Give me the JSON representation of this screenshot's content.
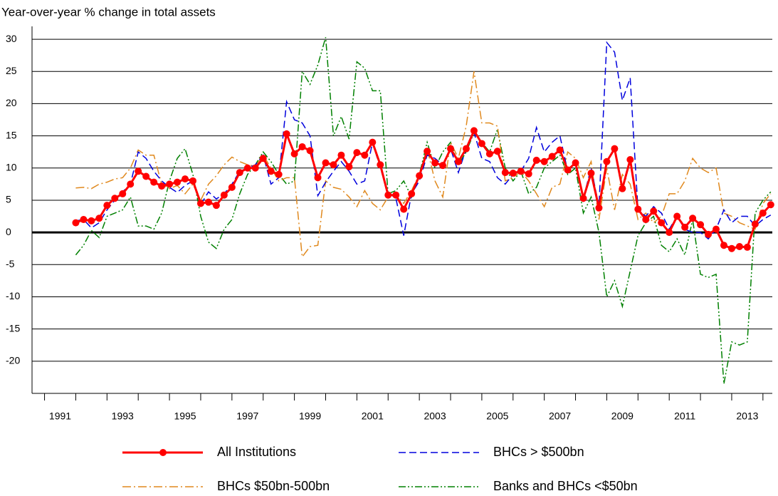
{
  "chart_data": {
    "type": "line",
    "title": "Year-over-year % change in total assets",
    "x": [
      1992.0,
      1992.25,
      1992.5,
      1992.75,
      1993.0,
      1993.25,
      1993.5,
      1993.75,
      1994.0,
      1994.25,
      1994.5,
      1994.75,
      1995.0,
      1995.25,
      1995.5,
      1995.75,
      1996.0,
      1996.25,
      1996.5,
      1996.75,
      1997.0,
      1997.25,
      1997.5,
      1997.75,
      1998.0,
      1998.25,
      1998.5,
      1998.75,
      1999.0,
      1999.25,
      1999.5,
      1999.75,
      2000.0,
      2000.25,
      2000.5,
      2000.75,
      2001.0,
      2001.25,
      2001.5,
      2001.75,
      2002.0,
      2002.25,
      2002.5,
      2002.75,
      2003.0,
      2003.25,
      2003.5,
      2003.75,
      2004.0,
      2004.25,
      2004.5,
      2004.75,
      2005.0,
      2005.25,
      2005.5,
      2005.75,
      2006.0,
      2006.25,
      2006.5,
      2006.75,
      2007.0,
      2007.25,
      2007.5,
      2007.75,
      2008.0,
      2008.25,
      2008.5,
      2008.75,
      2009.0,
      2009.25,
      2009.5,
      2009.75,
      2010.0,
      2010.25,
      2010.5,
      2010.75,
      2011.0,
      2011.25,
      2011.5,
      2011.75,
      2012.0,
      2012.25,
      2012.5,
      2012.75,
      2013.0,
      2013.25,
      2013.5,
      2013.75,
      2014.0,
      2014.25
    ],
    "series": [
      {
        "name": "All Institutions",
        "color": "#ff0000",
        "style": "solid",
        "marker": "circle",
        "values": [
          1.5,
          2.0,
          1.8,
          2.2,
          4.2,
          5.3,
          6.0,
          7.5,
          9.5,
          8.7,
          7.8,
          7.2,
          7.5,
          7.8,
          8.3,
          8.0,
          4.5,
          4.7,
          4.2,
          5.8,
          7.0,
          9.3,
          10.0,
          10.0,
          11.5,
          9.5,
          9.0,
          15.3,
          12.2,
          13.3,
          12.7,
          8.5,
          10.8,
          10.5,
          12.0,
          10.2,
          12.4,
          12.0,
          14.0,
          10.5,
          5.8,
          5.8,
          3.6,
          6.0,
          8.8,
          12.6,
          10.8,
          10.4,
          13.0,
          11.0,
          13.0,
          15.8,
          13.8,
          12.2,
          12.6,
          9.3,
          9.2,
          9.5,
          9.1,
          11.2,
          11.0,
          11.8,
          12.8,
          9.7,
          10.8,
          5.3,
          9.2,
          3.8,
          11.0,
          13.0,
          6.8,
          11.3,
          3.6,
          2.0,
          3.3,
          1.5,
          0.0,
          2.5,
          0.8,
          2.2,
          1.2,
          -0.3,
          0.5,
          -2.0,
          -2.5,
          -2.2,
          -2.3,
          1.3,
          3.0,
          4.3
        ]
      },
      {
        "name": "BHCs > $500bn",
        "color": "#0000dd",
        "style": "dashed",
        "values": [
          1.8,
          2.0,
          0.7,
          1.5,
          3.5,
          5.0,
          6.3,
          7.5,
          12.5,
          11.5,
          9.5,
          8.0,
          7.0,
          6.2,
          7.3,
          8.0,
          4.3,
          6.3,
          5.2,
          6.0,
          7.5,
          9.5,
          10.0,
          10.5,
          12.0,
          7.5,
          8.5,
          20.3,
          17.5,
          17.0,
          15.0,
          5.7,
          7.8,
          9.5,
          11.0,
          9.5,
          7.5,
          8.0,
          14.0,
          10.0,
          6.2,
          5.3,
          -0.5,
          6.0,
          8.0,
          12.0,
          11.5,
          10.5,
          13.0,
          9.3,
          13.0,
          15.5,
          11.5,
          11.0,
          8.5,
          7.5,
          9.0,
          9.5,
          11.5,
          16.3,
          12.5,
          14.0,
          15.0,
          9.5,
          11.0,
          5.3,
          10.0,
          4.0,
          29.5,
          28.0,
          20.5,
          24.0,
          3.5,
          2.5,
          4.0,
          3.0,
          0.5,
          2.5,
          0.5,
          0.0,
          0.0,
          -1.0,
          0.5,
          3.5,
          1.5,
          2.5,
          2.5,
          1.0,
          2.0,
          2.7
        ]
      },
      {
        "name": "BHCs $50bn-500bn",
        "color": "#e0891e",
        "style": "dashdot",
        "values": [
          6.9,
          7.0,
          6.8,
          7.5,
          7.8,
          8.3,
          8.5,
          10.0,
          12.8,
          12.0,
          12.0,
          7.5,
          6.8,
          7.3,
          6.0,
          7.5,
          5.0,
          7.5,
          8.8,
          10.5,
          11.7,
          11.0,
          10.5,
          10.3,
          12.0,
          10.0,
          8.0,
          8.5,
          8.5,
          -3.8,
          -2.2,
          -2.0,
          8.0,
          7.0,
          6.7,
          5.5,
          4.0,
          6.5,
          4.5,
          3.5,
          5.5,
          6.0,
          4.5,
          6.5,
          9.0,
          13.0,
          8.0,
          5.5,
          14.0,
          11.5,
          16.5,
          25.0,
          17.0,
          17.0,
          16.5,
          8.0,
          8.5,
          9.5,
          8.0,
          6.0,
          4.0,
          7.0,
          7.5,
          12.5,
          11.5,
          8.5,
          11.0,
          2.0,
          10.0,
          3.5,
          9.0,
          7.5,
          2.0,
          3.0,
          1.5,
          2.5,
          6.0,
          6.0,
          8.0,
          11.5,
          10.0,
          9.3,
          10.0,
          3.0,
          2.5,
          1.5,
          1.0,
          0.5,
          4.5,
          6.0
        ]
      },
      {
        "name": "Banks and BHCs <$50bn",
        "color": "#008000",
        "style": "dashdotdot",
        "values": [
          -3.5,
          -2.0,
          0.3,
          -0.8,
          2.5,
          3.0,
          3.5,
          5.5,
          1.0,
          1.0,
          0.5,
          3.0,
          8.0,
          11.5,
          13.0,
          9.0,
          2.5,
          -1.5,
          -2.5,
          0.5,
          2.0,
          6.0,
          9.0,
          10.5,
          12.5,
          11.0,
          9.0,
          7.5,
          8.0,
          25.0,
          23.0,
          26.0,
          30.3,
          15.0,
          18.0,
          14.5,
          26.5,
          25.5,
          22.0,
          22.0,
          6.0,
          6.5,
          8.0,
          5.5,
          9.0,
          14.0,
          10.0,
          12.5,
          14.0,
          10.5,
          12.5,
          15.5,
          14.0,
          12.5,
          16.0,
          10.0,
          8.0,
          9.5,
          6.0,
          7.0,
          10.0,
          11.0,
          12.0,
          9.0,
          10.0,
          3.0,
          5.5,
          0.0,
          -10.0,
          -7.5,
          -11.5,
          -6.0,
          -0.5,
          1.5,
          2.5,
          -2.0,
          -3.0,
          -1.0,
          -3.5,
          2.0,
          -6.5,
          -7.0,
          -6.5,
          -23.5,
          -17.0,
          -17.5,
          -17.0,
          3.0,
          5.0,
          6.3
        ]
      }
    ],
    "xlim": [
      1990.6,
      2014.3
    ],
    "xticks": [
      {
        "value": 1991.5,
        "label": "1991"
      },
      {
        "value": 1993.5,
        "label": "1993"
      },
      {
        "value": 1995.5,
        "label": "1995"
      },
      {
        "value": 1997.5,
        "label": "1997"
      },
      {
        "value": 1999.5,
        "label": "1999"
      },
      {
        "value": 2001.5,
        "label": "2001"
      },
      {
        "value": 2003.5,
        "label": "2003"
      },
      {
        "value": 2005.5,
        "label": "2005"
      },
      {
        "value": 2007.5,
        "label": "2007"
      },
      {
        "value": 2009.5,
        "label": "2009"
      },
      {
        "value": 2011.5,
        "label": "2011"
      },
      {
        "value": 2013.5,
        "label": "2013"
      }
    ],
    "minor_xticks": [
      1991,
      1992,
      1993,
      1994,
      1995,
      1996,
      1997,
      1998,
      1999,
      2000,
      2001,
      2002,
      2003,
      2004,
      2005,
      2006,
      2007,
      2008,
      2009,
      2010,
      2011,
      2012,
      2013,
      2014
    ],
    "ylim": [
      -25,
      32
    ],
    "yticks": [
      -20,
      -15,
      -10,
      -5,
      0,
      5,
      10,
      15,
      20,
      25,
      30
    ],
    "grid": true,
    "legend": "bottom"
  }
}
